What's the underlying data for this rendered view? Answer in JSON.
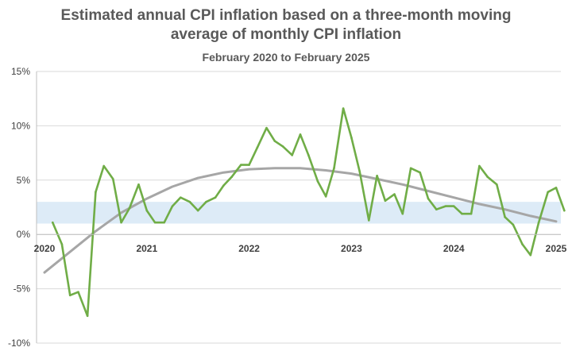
{
  "chart_data": {
    "type": "line",
    "title": "Estimated annual CPI inflation based on a three-month moving average of monthly CPI inflation",
    "subtitle": "February 2020 to February 2025",
    "title_lines": [
      "Estimated annual CPI inflation based on a three-month moving",
      "average of monthly CPI inflation"
    ],
    "xlabel": "",
    "ylabel": "",
    "ylim": [
      -10,
      15
    ],
    "xlim": [
      2020,
      2025
    ],
    "y_ticks": [
      {
        "value": 15,
        "label": "15%"
      },
      {
        "value": 10,
        "label": "10%"
      },
      {
        "value": 5,
        "label": "5%"
      },
      {
        "value": 0,
        "label": "0%"
      },
      {
        "value": -5,
        "label": "-5%"
      },
      {
        "value": -10,
        "label": "-10%"
      }
    ],
    "x_ticks": [
      {
        "value": 2020,
        "label": "2020"
      },
      {
        "value": 2021,
        "label": "2021"
      },
      {
        "value": 2022,
        "label": "2022"
      },
      {
        "value": 2023,
        "label": "2023"
      },
      {
        "value": 2024,
        "label": "2024"
      },
      {
        "value": 2025,
        "label": "2025"
      }
    ],
    "target_band": [
      1,
      3
    ],
    "grid": "horizontal",
    "legend": "none",
    "colors": {
      "series": "#70ad47",
      "trend": "#a6a6a6",
      "band": "#ddebf7",
      "grid": "#d9d9d9"
    },
    "series": [
      {
        "type": "line",
        "x": [
          2020.08,
          2020.17,
          2020.25,
          2020.33,
          2020.42,
          2020.5,
          2020.58,
          2020.67,
          2020.75,
          2020.83,
          2020.92,
          2021.0,
          2021.08,
          2021.17,
          2021.25,
          2021.33,
          2021.42,
          2021.5,
          2021.58,
          2021.67,
          2021.75,
          2021.83,
          2021.92,
          2022.0,
          2022.08,
          2022.17,
          2022.25,
          2022.33,
          2022.42,
          2022.5,
          2022.58,
          2022.67,
          2022.75,
          2022.83,
          2022.92,
          2023.0,
          2023.08,
          2023.17,
          2023.25,
          2023.33,
          2023.42,
          2023.5,
          2023.58,
          2023.67,
          2023.75,
          2023.83,
          2023.92,
          2024.0,
          2024.08,
          2024.17,
          2024.25,
          2024.33,
          2024.42,
          2024.5,
          2024.58,
          2024.67,
          2024.75,
          2024.83,
          2024.92,
          2025.0,
          2025.08
        ],
        "values": [
          1.1,
          -0.9,
          -5.6,
          -5.3,
          -7.5,
          3.9,
          6.3,
          5.1,
          1.1,
          2.4,
          4.6,
          2.2,
          1.1,
          1.1,
          2.6,
          3.4,
          3.0,
          2.2,
          3.0,
          3.4,
          4.5,
          5.3,
          6.4,
          6.4,
          8.0,
          9.8,
          8.6,
          8.1,
          7.3,
          9.2,
          7.3,
          4.9,
          3.5,
          6.1,
          11.6,
          8.9,
          5.8,
          1.3,
          5.4,
          3.1,
          3.7,
          1.9,
          6.1,
          5.7,
          3.3,
          2.3,
          2.6,
          2.6,
          1.9,
          1.9,
          6.3,
          5.3,
          4.6,
          1.6,
          0.9,
          -0.9,
          -1.9,
          1.1,
          3.9,
          4.3,
          2.2
        ]
      },
      {
        "type": "trend",
        "x": [
          2020.0,
          2020.25,
          2020.5,
          2020.75,
          2021.0,
          2021.25,
          2021.5,
          2021.75,
          2022.0,
          2022.25,
          2022.5,
          2022.75,
          2023.0,
          2023.25,
          2023.5,
          2023.75,
          2024.0,
          2024.25,
          2024.5,
          2024.75,
          2025.0
        ],
        "values": [
          -3.5,
          -1.6,
          0.3,
          2.0,
          3.3,
          4.4,
          5.2,
          5.7,
          6.0,
          6.1,
          6.1,
          5.9,
          5.6,
          5.1,
          4.6,
          4.0,
          3.4,
          2.8,
          2.3,
          1.7,
          1.2
        ]
      }
    ]
  }
}
